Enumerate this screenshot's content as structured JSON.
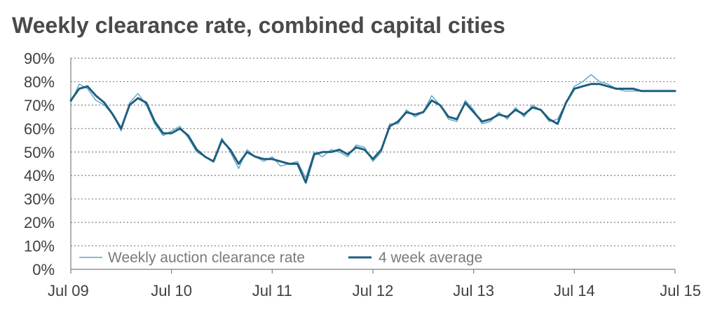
{
  "chart_data": {
    "type": "line",
    "title": "Weekly clearance rate, combined capital cities",
    "xlabel": "",
    "ylabel": "",
    "x_ticks": [
      "Jul 09",
      "Jul 10",
      "Jul 11",
      "Jul 12",
      "Jul 13",
      "Jul 14",
      "Jul 15"
    ],
    "y_ticks": [
      "0%",
      "10%",
      "20%",
      "30%",
      "40%",
      "50%",
      "60%",
      "70%",
      "80%",
      "90%"
    ],
    "ylim": [
      0,
      90
    ],
    "xlim": [
      "2009-07",
      "2015-07"
    ],
    "grid": "horizontal dotted",
    "legend_position": "bottom-left",
    "colors": {
      "weekly": "#5aa5c8",
      "average": "#1f5f80",
      "grid": "#7f7f7f",
      "text": "#404040"
    },
    "series": [
      {
        "name": "Weekly auction clearance rate",
        "x": [
          "2009-07",
          "2009-08",
          "2009-09",
          "2009-10",
          "2009-11",
          "2009-12",
          "2010-01",
          "2010-02",
          "2010-03",
          "2010-04",
          "2010-05",
          "2010-06",
          "2010-07",
          "2010-08",
          "2010-09",
          "2010-10",
          "2010-11",
          "2010-12",
          "2011-01",
          "2011-02",
          "2011-03",
          "2011-04",
          "2011-05",
          "2011-06",
          "2011-07",
          "2011-08",
          "2011-09",
          "2011-10",
          "2011-11",
          "2011-12",
          "2012-01",
          "2012-02",
          "2012-03",
          "2012-04",
          "2012-05",
          "2012-06",
          "2012-07",
          "2012-08",
          "2012-09",
          "2012-10",
          "2012-11",
          "2012-12",
          "2013-01",
          "2013-02",
          "2013-03",
          "2013-04",
          "2013-05",
          "2013-06",
          "2013-07",
          "2013-08",
          "2013-09",
          "2013-10",
          "2013-11",
          "2013-12",
          "2014-01",
          "2014-02",
          "2014-03",
          "2014-04",
          "2014-05",
          "2014-06",
          "2014-07",
          "2014-08",
          "2014-09",
          "2014-10",
          "2014-11",
          "2014-12",
          "2015-01",
          "2015-02",
          "2015-03",
          "2015-04",
          "2015-05",
          "2015-06",
          "2015-07"
        ],
        "values": [
          71,
          79,
          77,
          72,
          70,
          66,
          59,
          71,
          75,
          70,
          62,
          57,
          59,
          61,
          56,
          50,
          48,
          46,
          56,
          50,
          43,
          51,
          48,
          46,
          48,
          44,
          45,
          46,
          39,
          50,
          48,
          51,
          50,
          48,
          53,
          52,
          46,
          50,
          62,
          62,
          68,
          65,
          67,
          74,
          70,
          64,
          63,
          72,
          68,
          62,
          63,
          67,
          64,
          69,
          65,
          70,
          68,
          63,
          64,
          71,
          78,
          80,
          83,
          80,
          79,
          77,
          76,
          76,
          76,
          76,
          76,
          76,
          76
        ]
      },
      {
        "name": "4 week average",
        "x": [
          "2009-07",
          "2009-08",
          "2009-09",
          "2009-10",
          "2009-11",
          "2009-12",
          "2010-01",
          "2010-02",
          "2010-03",
          "2010-04",
          "2010-05",
          "2010-06",
          "2010-07",
          "2010-08",
          "2010-09",
          "2010-10",
          "2010-11",
          "2010-12",
          "2011-01",
          "2011-02",
          "2011-03",
          "2011-04",
          "2011-05",
          "2011-06",
          "2011-07",
          "2011-08",
          "2011-09",
          "2011-10",
          "2011-11",
          "2011-12",
          "2012-01",
          "2012-02",
          "2012-03",
          "2012-04",
          "2012-05",
          "2012-06",
          "2012-07",
          "2012-08",
          "2012-09",
          "2012-10",
          "2012-11",
          "2012-12",
          "2013-01",
          "2013-02",
          "2013-03",
          "2013-04",
          "2013-05",
          "2013-06",
          "2013-07",
          "2013-08",
          "2013-09",
          "2013-10",
          "2013-11",
          "2013-12",
          "2014-01",
          "2014-02",
          "2014-03",
          "2014-04",
          "2014-05",
          "2014-06",
          "2014-07",
          "2014-08",
          "2014-09",
          "2014-10",
          "2014-11",
          "2014-12",
          "2015-01",
          "2015-02",
          "2015-03",
          "2015-04",
          "2015-05",
          "2015-06",
          "2015-07"
        ],
        "values": [
          72,
          77,
          78,
          74,
          71,
          66,
          60,
          70,
          73,
          71,
          63,
          58,
          58,
          60,
          57,
          51,
          48,
          46,
          55,
          51,
          45,
          50,
          48,
          47,
          47,
          46,
          45,
          45,
          37,
          49,
          50,
          50,
          51,
          49,
          52,
          51,
          47,
          51,
          61,
          63,
          67,
          66,
          67,
          72,
          70,
          65,
          64,
          71,
          67,
          63,
          64,
          66,
          65,
          68,
          66,
          69,
          68,
          64,
          62,
          71,
          77,
          78,
          79,
          79,
          78,
          77,
          77,
          77,
          76,
          76,
          76,
          76,
          76
        ]
      }
    ]
  }
}
